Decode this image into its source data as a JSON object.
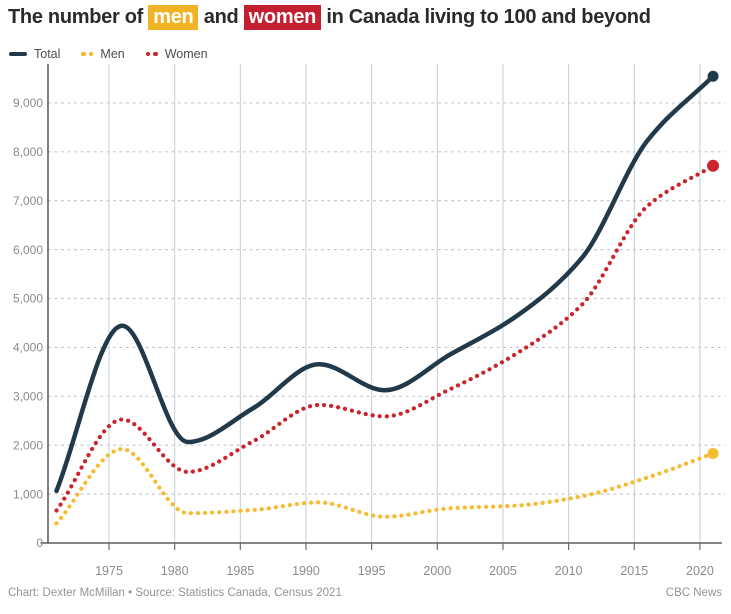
{
  "title": {
    "parts": [
      {
        "text": "The number of ",
        "highlight": null
      },
      {
        "text": "men",
        "highlight": "yellow"
      },
      {
        "text": " and ",
        "highlight": null
      },
      {
        "text": "women",
        "highlight": "red"
      },
      {
        "text": " in Canada living to 100 and beyond",
        "highlight": null
      }
    ]
  },
  "legend": {
    "items": [
      {
        "label": "Total",
        "marker": "line",
        "color": "#22394a"
      },
      {
        "label": "Men",
        "marker": "dots",
        "color": "#f2b22a"
      },
      {
        "label": "Women",
        "marker": "dots",
        "color": "#c9252c"
      }
    ]
  },
  "footer": {
    "credit": "Chart: Dexter McMillan • Source: Statistics Canada, Census 2021",
    "brand": "CBC News"
  },
  "colors": {
    "title_text": "#2a2a2a",
    "highlight_yellow": "#f0b324",
    "highlight_red": "#c41f30",
    "total_line": "#22394a",
    "men_line": "#f8bb2d",
    "women_line": "#c9252c",
    "vertical_grid": "#c5ced4",
    "horizontal_grid": "#c2ccd3",
    "axis_line": "#3d3d3d",
    "tick": "#6b6b6b",
    "tick_label": "#8b8b8b",
    "legend_text": "#4d4d4d",
    "footer_text": "#949494",
    "background": "#ffffff"
  },
  "chart_data": {
    "type": "line",
    "title": "The number of men and women in Canada living to 100 and beyond",
    "x": [
      1971,
      1976,
      1981,
      1986,
      1991,
      1996,
      2001,
      2006,
      2011,
      2016,
      2021
    ],
    "series": [
      {
        "name": "Total",
        "color": "#22394a",
        "style": "solid",
        "values": [
          1065,
          4445,
          2065,
          2760,
          3655,
          3125,
          3860,
          4635,
          5825,
          8230,
          9545
        ]
      },
      {
        "name": "Men",
        "color": "#f8bb2d",
        "style": "dotted",
        "values": [
          400,
          1920,
          610,
          675,
          830,
          535,
          710,
          765,
          955,
          1340,
          1830
        ]
      },
      {
        "name": "Women",
        "color": "#c9252c",
        "style": "dotted",
        "values": [
          665,
          2525,
          1455,
          2085,
          2825,
          2590,
          3150,
          3870,
          4870,
          6890,
          7715
        ]
      }
    ],
    "xlabel": "",
    "ylabel": "",
    "x_ticks": [
      1975,
      1980,
      1985,
      1990,
      1995,
      2000,
      2005,
      2010,
      2015,
      2020
    ],
    "y_ticks": [
      0,
      1000,
      2000,
      3000,
      4000,
      5000,
      6000,
      7000,
      8000,
      9000
    ],
    "y_tick_labels": [
      "0",
      "1,000",
      "2,000",
      "3,000",
      "4,000",
      "5,000",
      "6,000",
      "7,000",
      "8,000",
      "9,000"
    ],
    "ylim": [
      0,
      9700
    ],
    "xlim": [
      1970.4,
      2021.7
    ],
    "grid": true,
    "legend_position": "top-left",
    "end_point_markers": true
  }
}
